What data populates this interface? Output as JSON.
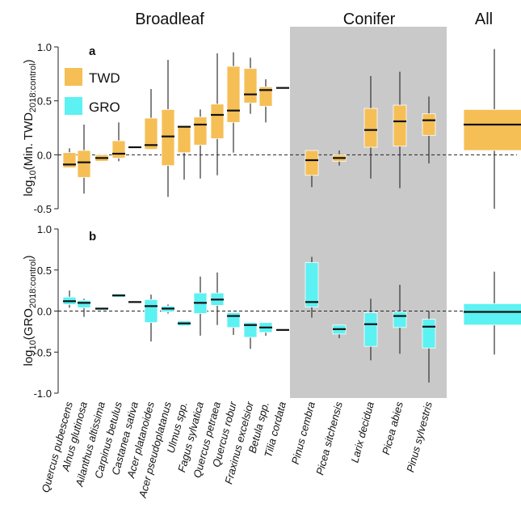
{
  "groups": [
    {
      "label": "Broadleaf",
      "shaded": false
    },
    {
      "label": "Conifer",
      "shaded": true
    },
    {
      "label": "All",
      "shaded": false
    }
  ],
  "colors": {
    "twd": "#f5bf56",
    "gro": "#5cf1f2",
    "conifer_bg": "#c9c9c9",
    "whisker": "#333333",
    "median": "#111111"
  },
  "legend": [
    {
      "name": "TWD",
      "color": "#f5bf56"
    },
    {
      "name": "GRO",
      "color": "#5cf1f2"
    }
  ],
  "species": [
    "Quercus pubescens",
    "Alnus glutinosa",
    "Ailanthus altissima",
    "Carpinus betulus",
    "Castanea sativa",
    "Acer platanoides",
    "Acer pseudoplatanus",
    "Ulmus spp.",
    "Fagus sylvatica",
    "Quercus petraea",
    "Quercus robur",
    "Fraxinus excelsior",
    "Betula spp.",
    "Tilia cordata",
    "Pinus cembra",
    "Picea sitchensis",
    "Larix decidua",
    "Picea abies",
    "Pinus sylvestris"
  ],
  "chart_data": [
    {
      "type": "box",
      "panel": "a",
      "ylabel": "log10(Min. TWD2018:control)",
      "ylim": [
        -0.5,
        1.0
      ],
      "yticks": [
        "-0.5",
        "0.0",
        "0.5",
        "1.0"
      ],
      "reference_line": 0,
      "series": [
        {
          "name": "TWD",
          "boxes": [
            {
              "category": "Quercus pubescens",
              "q1": -0.12,
              "median": -0.09,
              "q3": 0.02,
              "min": -0.12,
              "max": 0.06
            },
            {
              "category": "Alnus glutinosa",
              "q1": -0.21,
              "median": -0.07,
              "q3": 0.04,
              "min": -0.36,
              "max": 0.28
            },
            {
              "category": "Ailanthus altissima",
              "q1": -0.06,
              "median": -0.03,
              "q3": 0.0,
              "min": -0.06,
              "max": 0.0
            },
            {
              "category": "Carpinus betulus",
              "q1": -0.03,
              "median": 0.01,
              "q3": 0.13,
              "min": -0.06,
              "max": 0.3
            },
            {
              "category": "Castanea sativa",
              "q1": 0.07,
              "median": 0.07,
              "q3": 0.07,
              "min": 0.07,
              "max": 0.07
            },
            {
              "category": "Acer platanoides",
              "q1": 0.05,
              "median": 0.09,
              "q3": 0.34,
              "min": 0.05,
              "max": 0.61
            },
            {
              "category": "Acer pseudoplatanus",
              "q1": -0.1,
              "median": 0.17,
              "q3": 0.42,
              "min": -0.39,
              "max": 0.88
            },
            {
              "category": "Ulmus spp.",
              "q1": 0.02,
              "median": 0.26,
              "q3": 0.27,
              "min": -0.23,
              "max": 0.27
            },
            {
              "category": "Fagus sylvatica",
              "q1": 0.09,
              "median": 0.28,
              "q3": 0.35,
              "min": -0.22,
              "max": 0.42
            },
            {
              "category": "Quercus petraea",
              "q1": 0.15,
              "median": 0.37,
              "q3": 0.47,
              "min": -0.19,
              "max": 0.94
            },
            {
              "category": "Quercus robur",
              "q1": 0.3,
              "median": 0.41,
              "q3": 0.82,
              "min": 0.02,
              "max": 0.95
            },
            {
              "category": "Fraxinus excelsior",
              "q1": 0.48,
              "median": 0.56,
              "q3": 0.8,
              "min": 0.38,
              "max": 0.9
            },
            {
              "category": "Betula spp.",
              "q1": 0.45,
              "median": 0.6,
              "q3": 0.63,
              "min": 0.3,
              "max": 0.7
            },
            {
              "category": "Tilia cordata",
              "q1": 0.62,
              "median": 0.62,
              "q3": 0.62,
              "min": 0.62,
              "max": 0.62
            },
            {
              "category": "Pinus cembra",
              "q1": -0.19,
              "median": -0.05,
              "q3": 0.04,
              "min": -0.3,
              "max": 0.04
            },
            {
              "category": "Picea sitchensis",
              "q1": -0.06,
              "median": -0.03,
              "q3": 0.0,
              "min": -0.1,
              "max": 0.04
            },
            {
              "category": "Larix decidua",
              "q1": 0.07,
              "median": 0.23,
              "q3": 0.43,
              "min": -0.22,
              "max": 0.73
            },
            {
              "category": "Picea abies",
              "q1": 0.08,
              "median": 0.31,
              "q3": 0.46,
              "min": -0.31,
              "max": 0.77
            },
            {
              "category": "Pinus sylvestris",
              "q1": 0.18,
              "median": 0.32,
              "q3": 0.38,
              "min": -0.08,
              "max": 0.54
            },
            {
              "category": "All",
              "q1": 0.04,
              "median": 0.28,
              "q3": 0.42,
              "min": -0.5,
              "max": 0.98
            }
          ]
        }
      ]
    },
    {
      "type": "box",
      "panel": "b",
      "ylabel": "log10(GRO2018:control)",
      "ylim": [
        -1.0,
        1.0
      ],
      "yticks": [
        "-1.0",
        "-0.5",
        "0.0",
        "0.5",
        "1.0"
      ],
      "reference_line": 0,
      "series": [
        {
          "name": "GRO",
          "boxes": [
            {
              "category": "Quercus pubescens",
              "q1": 0.08,
              "median": 0.12,
              "q3": 0.17,
              "min": 0.04,
              "max": 0.25
            },
            {
              "category": "Alnus glutinosa",
              "q1": 0.04,
              "median": 0.1,
              "q3": 0.13,
              "min": -0.07,
              "max": 0.15
            },
            {
              "category": "Ailanthus altissima",
              "q1": 0.01,
              "median": 0.03,
              "q3": 0.04,
              "min": 0.01,
              "max": 0.04
            },
            {
              "category": "Carpinus betulus",
              "q1": 0.17,
              "median": 0.19,
              "q3": 0.21,
              "min": 0.17,
              "max": 0.21
            },
            {
              "category": "Castanea sativa",
              "q1": 0.11,
              "median": 0.11,
              "q3": 0.11,
              "min": 0.11,
              "max": 0.11
            },
            {
              "category": "Acer platanoides",
              "q1": -0.14,
              "median": 0.06,
              "q3": 0.14,
              "min": -0.37,
              "max": 0.2
            },
            {
              "category": "Acer pseudoplatanus",
              "q1": -0.01,
              "median": 0.03,
              "q3": 0.06,
              "min": -0.03,
              "max": 0.08
            },
            {
              "category": "Ulmus spp.",
              "q1": -0.18,
              "median": -0.15,
              "q3": -0.12,
              "min": -0.18,
              "max": -0.12
            },
            {
              "category": "Fagus sylvatica",
              "q1": -0.03,
              "median": 0.1,
              "q3": 0.22,
              "min": -0.3,
              "max": 0.42
            },
            {
              "category": "Quercus petraea",
              "q1": 0.07,
              "median": 0.14,
              "q3": 0.22,
              "min": -0.17,
              "max": 0.47
            },
            {
              "category": "Quercus robur",
              "q1": -0.2,
              "median": -0.06,
              "q3": -0.02,
              "min": -0.29,
              "max": -0.02
            },
            {
              "category": "Fraxinus excelsior",
              "q1": -0.32,
              "median": -0.17,
              "q3": -0.14,
              "min": -0.46,
              "max": -0.14
            },
            {
              "category": "Betula spp.",
              "q1": -0.26,
              "median": -0.2,
              "q3": -0.14,
              "min": -0.3,
              "max": -0.14
            },
            {
              "category": "Tilia cordata",
              "q1": -0.23,
              "median": -0.23,
              "q3": -0.23,
              "min": -0.23,
              "max": -0.23
            },
            {
              "category": "Pinus cembra",
              "q1": 0.05,
              "median": 0.11,
              "q3": 0.59,
              "min": -0.08,
              "max": 0.66
            },
            {
              "category": "Picea sitchensis",
              "q1": -0.28,
              "median": -0.22,
              "q3": -0.17,
              "min": -0.33,
              "max": -0.17
            },
            {
              "category": "Larix decidua",
              "q1": -0.43,
              "median": -0.16,
              "q3": -0.02,
              "min": -0.6,
              "max": 0.15
            },
            {
              "category": "Picea abies",
              "q1": -0.2,
              "median": -0.06,
              "q3": -0.01,
              "min": -0.52,
              "max": 0.32
            },
            {
              "category": "Pinus sylvestris",
              "q1": -0.45,
              "median": -0.19,
              "q3": -0.1,
              "min": -0.87,
              "max": 0.0
            },
            {
              "category": "All",
              "q1": -0.17,
              "median": -0.01,
              "q3": 0.09,
              "min": -0.53,
              "max": 0.48
            }
          ]
        }
      ]
    }
  ]
}
